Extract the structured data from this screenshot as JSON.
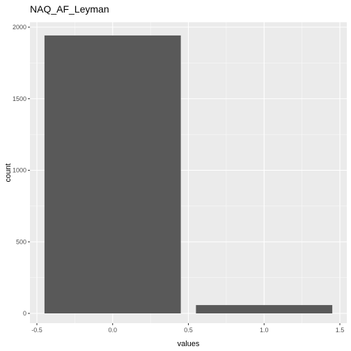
{
  "colors": {
    "panel_background": "#EBEBEB",
    "grid_major": "#FFFFFF",
    "bar_fill": "#595959",
    "tick_mark": "#333333",
    "tick_text": "#4D4D4D"
  },
  "chart_data": {
    "type": "bar",
    "title": "NAQ_AF_Leyman",
    "xlabel": "values",
    "ylabel": "count",
    "xlim": [
      -0.5,
      1.5
    ],
    "ylim": [
      0,
      2000
    ],
    "grid": true,
    "legend": "none",
    "x_ticks": [
      {
        "value": -0.5,
        "label": "-0.5"
      },
      {
        "value": 0.0,
        "label": "0.0"
      },
      {
        "value": 0.5,
        "label": "0.5"
      },
      {
        "value": 1.0,
        "label": "1.0"
      },
      {
        "value": 1.5,
        "label": "1.5"
      }
    ],
    "y_ticks": [
      {
        "value": 0,
        "label": "0"
      },
      {
        "value": 500,
        "label": "500"
      },
      {
        "value": 1000,
        "label": "1000"
      },
      {
        "value": 1500,
        "label": "1500"
      },
      {
        "value": 2000,
        "label": "2000"
      }
    ],
    "bars": [
      {
        "x": 0,
        "count": 1942,
        "width": 0.9
      },
      {
        "x": 1,
        "count": 58,
        "width": 0.9
      }
    ]
  }
}
